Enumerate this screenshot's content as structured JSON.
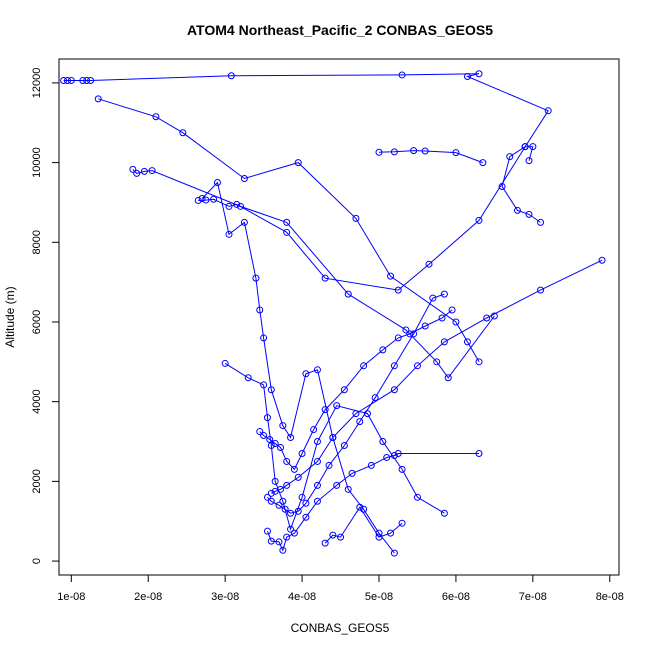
{
  "chart_data": {
    "type": "line",
    "title": "ATOM4 Northeast_Pacific_2 CONBAS_GEOS5",
    "xlabel": "CONBAS_GEOS5",
    "ylabel": "Altitude (m)",
    "xlim": [
      8.4e-09,
      8.12e-08
    ],
    "ylim": [
      -350,
      12600
    ],
    "xticks": [
      1e-08,
      2e-08,
      3e-08,
      4e-08,
      5e-08,
      6e-08,
      7e-08,
      8e-08
    ],
    "xtick_labels": [
      "1e-08",
      "2e-08",
      "3e-08",
      "4e-08",
      "5e-08",
      "6e-08",
      "7e-08",
      "8e-08"
    ],
    "yticks": [
      0,
      2000,
      4000,
      6000,
      8000,
      10000,
      12000
    ],
    "ytick_labels": [
      "0",
      "2000",
      "4000",
      "6000",
      "8000",
      "10000",
      "12000"
    ],
    "grid": false,
    "legend": "none",
    "line_style": "lines with open circle markers",
    "color": "#0000ff",
    "series": [
      {
        "x": [
          9e-09,
          9.5e-09,
          1e-08,
          1.15e-08,
          1.2e-08,
          1.25e-08,
          3.08e-08,
          5.3e-08,
          6.3e-08,
          6.15e-08,
          7.2e-08,
          6.9e-08,
          6.7e-08,
          6.6e-08,
          6.8e-08,
          6.95e-08,
          7.1e-08
        ],
        "y": [
          12060,
          12060,
          12060,
          12060,
          12060,
          12060,
          12180,
          12200,
          12230,
          12160,
          11300,
          10400,
          10150,
          9400,
          8800,
          8700,
          8500
        ]
      },
      {
        "x": [
          1.35e-08,
          2.1e-08,
          2.45e-08,
          3.25e-08,
          3.95e-08,
          4.7e-08,
          5.15e-08,
          6e-08,
          6.15e-08,
          6.3e-08
        ],
        "y": [
          11600,
          11150,
          10750,
          9600,
          10000,
          8600,
          7150,
          6000,
          5500,
          5000
        ]
      },
      {
        "x": [
          1.8e-08,
          1.85e-08,
          1.95e-08,
          2.05e-08,
          3.2e-08,
          3.8e-08,
          4.6e-08,
          5.35e-08,
          5.75e-08,
          5.9e-08,
          6.5e-08
        ],
        "y": [
          9830,
          9730,
          9780,
          9800,
          8900,
          8500,
          6700,
          5800,
          5000,
          4600,
          6150
        ]
      },
      {
        "x": [
          2.65e-08,
          2.75e-08,
          2.85e-08,
          3.05e-08,
          3.15e-08,
          3.8e-08,
          4.3e-08,
          5.25e-08,
          5.65e-08,
          6.3e-08,
          6.9e-08,
          7e-08,
          6.95e-08
        ],
        "y": [
          9050,
          9060,
          9080,
          8900,
          8950,
          8250,
          7100,
          6800,
          7450,
          8550,
          10400,
          10400,
          10050
        ]
      },
      {
        "x": [
          2.7e-08,
          2.9e-08,
          3.05e-08,
          3.25e-08,
          3.4e-08,
          3.45e-08,
          3.5e-08,
          3.6e-08,
          3.75e-08,
          3.85e-08,
          4.05e-08,
          4.2e-08,
          4.4e-08,
          4.6e-08,
          4.8e-08,
          5e-08,
          5.2e-08
        ],
        "y": [
          9100,
          9500,
          8200,
          8500,
          7100,
          6300,
          5600,
          4300,
          3400,
          3100,
          4700,
          4800,
          3100,
          1800,
          1300,
          700,
          200
        ]
      },
      {
        "x": [
          5e-08,
          5.2e-08,
          5.45e-08,
          5.6e-08,
          6e-08,
          6.35e-08
        ],
        "y": [
          10260,
          10270,
          10300,
          10290,
          10250,
          10000
        ]
      },
      {
        "x": [
          3e-08,
          3.3e-08,
          3.5e-08,
          3.55e-08,
          3.6e-08,
          3.65e-08,
          3.75e-08,
          3.85e-08,
          4e-08,
          4.2e-08,
          4.45e-08,
          4.85e-08,
          5.05e-08,
          5.3e-08,
          5.5e-08,
          5.85e-08
        ],
        "y": [
          4960,
          4600,
          4420,
          3600,
          2900,
          2000,
          1500,
          800,
          1600,
          3000,
          3900,
          3700,
          3000,
          2300,
          1600,
          1200
        ]
      },
      {
        "x": [
          3.45e-08,
          3.5e-08,
          3.58e-08,
          3.65e-08,
          3.72e-08,
          3.8e-08,
          3.9e-08,
          4e-08,
          4.15e-08,
          4.3e-08,
          4.55e-08,
          4.8e-08,
          5.05e-08,
          5.25e-08,
          5.4e-08,
          5.6e-08,
          5.82e-08,
          5.95e-08
        ],
        "y": [
          3250,
          3150,
          3050,
          2950,
          2850,
          2500,
          2300,
          2700,
          3300,
          3800,
          4300,
          4900,
          5300,
          5600,
          5700,
          5900,
          6100,
          6300
        ]
      },
      {
        "x": [
          3.55e-08,
          3.6e-08,
          3.7e-08,
          3.78e-08,
          3.85e-08,
          3.95e-08,
          4.05e-08,
          4.2e-08,
          4.35e-08,
          4.55e-08,
          4.75e-08,
          4.95e-08,
          5.2e-08,
          5.45e-08,
          5.7e-08,
          5.85e-08
        ],
        "y": [
          1600,
          1500,
          1400,
          1300,
          1200,
          1250,
          1450,
          1900,
          2400,
          2900,
          3500,
          4100,
          4900,
          5700,
          6600,
          6700
        ]
      },
      {
        "x": [
          3.6e-08,
          3.65e-08,
          3.72e-08,
          3.8e-08,
          3.95e-08,
          4.2e-08,
          4.4e-08,
          4.7e-08,
          5.2e-08,
          5.5e-08,
          5.85e-08,
          6.4e-08,
          7.1e-08,
          7.9e-08
        ],
        "y": [
          1700,
          1750,
          1800,
          1900,
          2100,
          2500,
          3100,
          3700,
          4300,
          4900,
          5500,
          6100,
          6800,
          7550
        ]
      },
      {
        "x": [
          4.3e-08,
          4.4e-08,
          4.5e-08,
          4.75e-08,
          5e-08,
          5.15e-08,
          5.3e-08
        ],
        "y": [
          450,
          650,
          600,
          1350,
          600,
          700,
          950
        ]
      },
      {
        "x": [
          3.55e-08,
          3.6e-08,
          3.7e-08,
          3.75e-08,
          3.8e-08,
          3.9e-08,
          4.05e-08,
          4.2e-08,
          4.45e-08,
          4.65e-08,
          4.9e-08,
          5.1e-08,
          5.2e-08,
          5.25e-08,
          6.3e-08
        ],
        "y": [
          750,
          500,
          480,
          270,
          600,
          700,
          1100,
          1500,
          1900,
          2200,
          2400,
          2600,
          2650,
          2700,
          2700
        ]
      }
    ]
  }
}
